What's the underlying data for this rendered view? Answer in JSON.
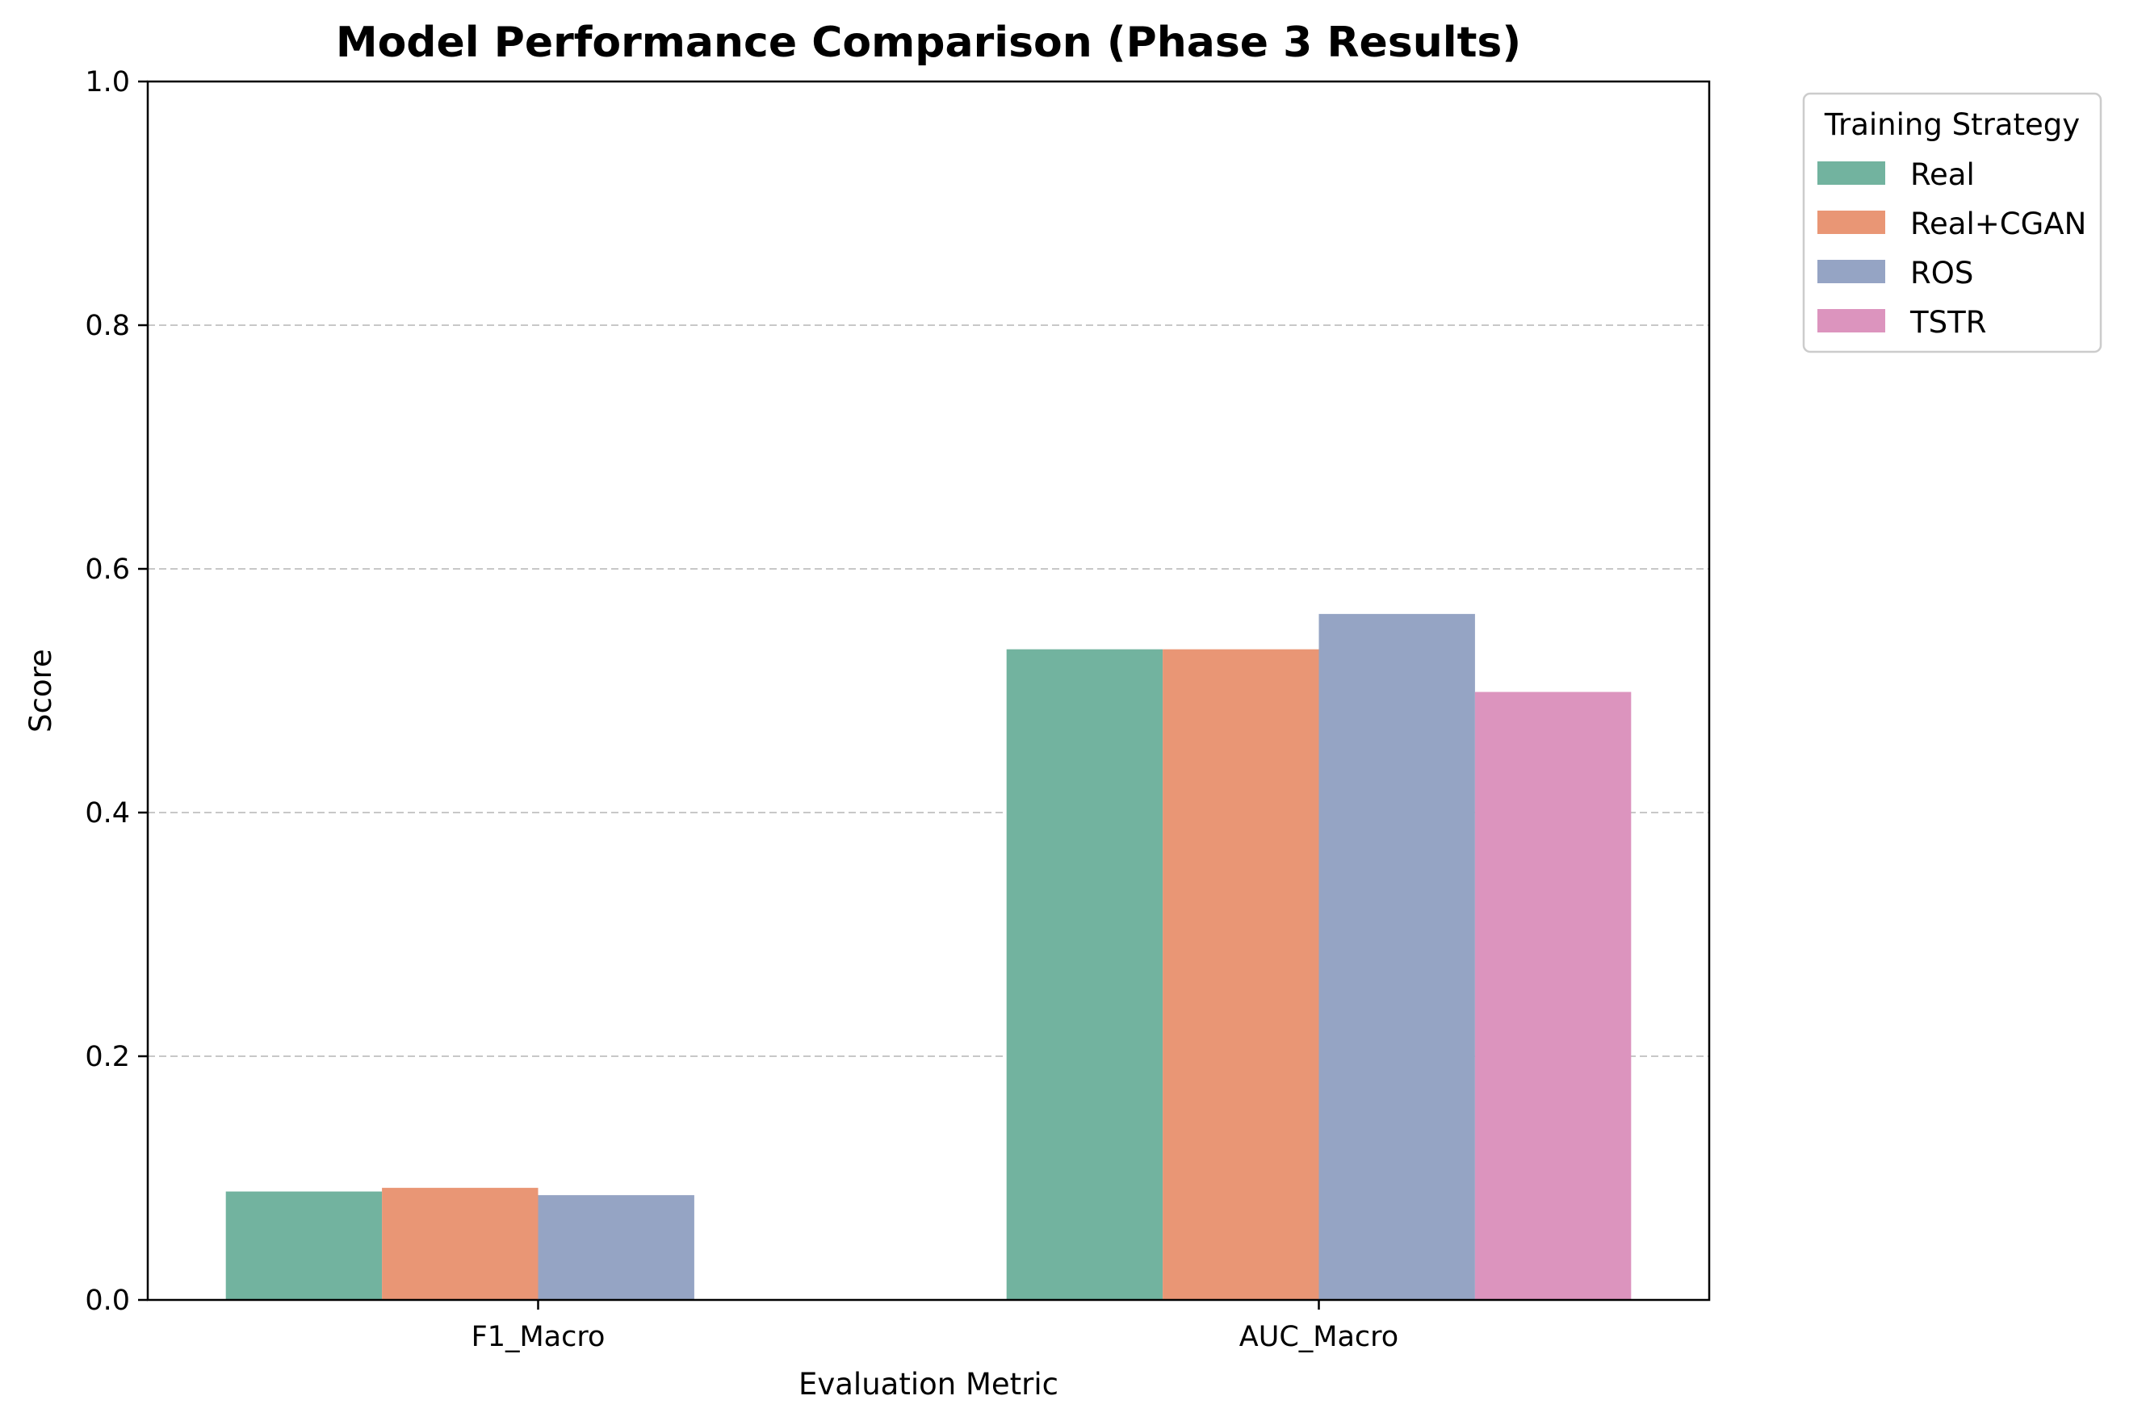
{
  "chart_data": {
    "type": "bar",
    "title": "Model Performance Comparison (Phase 3 Results)",
    "xlabel": "Evaluation Metric",
    "ylabel": "Score",
    "ylim": [
      0,
      1.0
    ],
    "yticks": [
      "0.0",
      "0.2",
      "0.4",
      "0.6",
      "0.8",
      "1.0"
    ],
    "grid": "y-dashed",
    "categories": [
      "F1_Macro",
      "AUC_Macro"
    ],
    "series": [
      {
        "name": "Real",
        "color": "#72b39f",
        "values": [
          0.089,
          0.534
        ]
      },
      {
        "name": "Real+CGAN",
        "color": "#e99675",
        "values": [
          0.092,
          0.534
        ]
      },
      {
        "name": "ROS",
        "color": "#95a4c4",
        "values": [
          0.086,
          0.563
        ]
      },
      {
        "name": "TSTR",
        "color": "#dc94be",
        "values": [
          0.0,
          0.499
        ]
      }
    ],
    "legend": {
      "title": "Training Strategy",
      "placement": "outside-top-right"
    }
  }
}
